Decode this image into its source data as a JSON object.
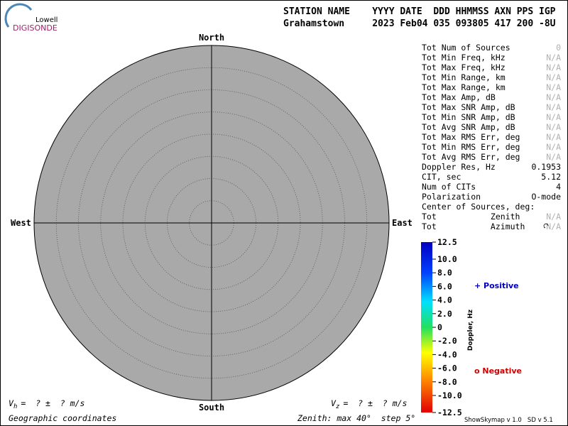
{
  "logo": {
    "small": "Lowell",
    "big": "DIGISONDE"
  },
  "header": {
    "line1": "STATION NAME    YYYY DATE  DDD HHMMSS AXN PPS IGP",
    "line2": "Grahamstown     2023 Feb04 035 093805 417 200 -8U"
  },
  "compass": {
    "north": "North",
    "south": "South",
    "east": "East",
    "west": "West"
  },
  "stats": [
    {
      "label": "Tot Num of Sources",
      "value": "0",
      "color": "#b0b0b0"
    },
    {
      "label": "Tot Min Freq, kHz",
      "value": "N/A",
      "color": "#b0b0b0"
    },
    {
      "label": "Tot Max Freq, kHz",
      "value": "N/A",
      "color": "#b0b0b0"
    },
    {
      "label": "Tot Min Range, km",
      "value": "N/A",
      "color": "#b0b0b0"
    },
    {
      "label": "Tot Max Range, km",
      "value": "N/A",
      "color": "#b0b0b0"
    },
    {
      "label": "Tot Max Amp, dB",
      "value": "N/A",
      "color": "#b0b0b0"
    },
    {
      "label": "Tot Max SNR Amp, dB",
      "value": "N/A",
      "color": "#b0b0b0"
    },
    {
      "label": "Tot Min SNR Amp, dB",
      "value": "N/A",
      "color": "#b0b0b0"
    },
    {
      "label": "Tot Avg SNR Amp, dB",
      "value": "N/A",
      "color": "#b0b0b0"
    },
    {
      "label": "Tot Max RMS Err, deg",
      "value": "N/A",
      "color": "#b0b0b0"
    },
    {
      "label": "Tot Min RMS Err, deg",
      "value": "N/A",
      "color": "#b0b0b0"
    },
    {
      "label": "Tot Avg RMS Err, deg",
      "value": "N/A",
      "color": "#b0b0b0"
    },
    {
      "label": "Doppler Res, Hz",
      "value": "0.1953",
      "color": "#000000"
    },
    {
      "label": "CIT, sec",
      "value": "5.12",
      "color": "#000000"
    },
    {
      "label": "Num of CITs",
      "value": "4",
      "color": "#000000"
    },
    {
      "label": "Polarization",
      "value": "O-mode",
      "color": "#000000"
    },
    {
      "label": "Center of Sources, deg:"
    },
    {
      "label": "Tot           Zenith",
      "value": "N/A",
      "color": "#b0b0b0"
    },
    {
      "label": "Tot           Azimuth",
      "value": "N/A",
      "color": "#b0b0b0"
    }
  ],
  "colorbar": {
    "label": "Doppler, Hz",
    "ticks": [
      {
        "value": 12.5,
        "label": "12.5"
      },
      {
        "value": 10,
        "label": "10.0"
      },
      {
        "value": 8,
        "label": "8.0"
      },
      {
        "value": 6,
        "label": "6.0"
      },
      {
        "value": 4,
        "label": "4.0"
      },
      {
        "value": 2,
        "label": "2.0"
      },
      0,
      {
        "value": -2,
        "label": "-2.0"
      },
      {
        "value": -4,
        "label": "-4.0"
      },
      {
        "value": -6,
        "label": "-6.0"
      },
      {
        "value": -8,
        "label": "-8.0"
      },
      {
        "value": -10,
        "label": "-10.0"
      },
      {
        "value": -12.5,
        "label": "-12.5"
      }
    ]
  },
  "legend": {
    "positive": "+ Positive",
    "negative": "o Negative"
  },
  "footer": {
    "vh_symbol": "V",
    "vh_sub": "h",
    "vh_text": "=  ? ±  ? m/s",
    "vz_symbol": "V",
    "vz_sub": "z",
    "vz_text": "=  ? ±  ? m/s",
    "coords": "Geographic coordinates",
    "zenith": "Zenith: max 40°  step 5°",
    "version": "ShowSkymap v 1.0   SD v 5.1"
  }
}
